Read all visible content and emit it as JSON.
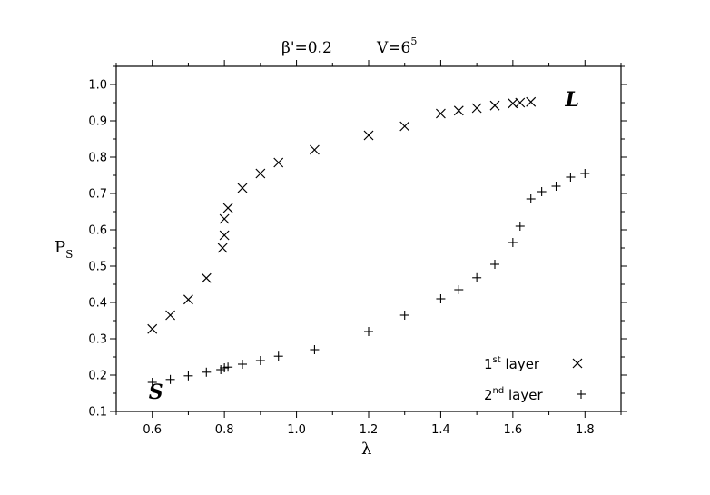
{
  "chart_data": {
    "type": "scatter",
    "title": "β'=0.2",
    "subtitle_base": "V=6",
    "subtitle_exp": "5",
    "xlabel": "λ",
    "ylabel_base": "P",
    "ylabel_sub": "S",
    "xlim": [
      0.5,
      1.9
    ],
    "ylim": [
      0.1,
      1.05
    ],
    "xticks": [
      0.6,
      0.8,
      1.0,
      1.2,
      1.4,
      1.6,
      1.8
    ],
    "xtick_labels": [
      "0.6",
      "0.8",
      "1.0",
      "1.2",
      "1.4",
      "1.6",
      "1.8"
    ],
    "yticks": [
      0.1,
      0.2,
      0.3,
      0.4,
      0.5,
      0.6,
      0.7,
      0.8,
      0.9,
      1.0
    ],
    "ytick_labels": [
      "0.1",
      "0.2",
      "0.3",
      "0.4",
      "0.5",
      "0.6",
      "0.7",
      "0.8",
      "0.9",
      "1.0"
    ],
    "grid": false,
    "legend_position": "bottom-right",
    "series": [
      {
        "name_base": "1",
        "name_sup": "st",
        "name_rest": " layer",
        "marker": "x",
        "x": [
          0.6,
          0.65,
          0.7,
          0.75,
          0.795,
          0.8,
          0.8,
          0.81,
          0.85,
          0.9,
          0.95,
          1.05,
          1.2,
          1.3,
          1.4,
          1.45,
          1.5,
          1.55,
          1.6,
          1.62,
          1.65
        ],
        "y": [
          0.327,
          0.365,
          0.408,
          0.467,
          0.55,
          0.585,
          0.63,
          0.66,
          0.715,
          0.755,
          0.785,
          0.82,
          0.86,
          0.885,
          0.92,
          0.928,
          0.935,
          0.942,
          0.948,
          0.95,
          0.952
        ]
      },
      {
        "name_base": "2",
        "name_sup": "nd",
        "name_rest": " layer",
        "marker": "+",
        "x": [
          0.6,
          0.65,
          0.7,
          0.75,
          0.79,
          0.8,
          0.81,
          0.85,
          0.9,
          0.95,
          1.05,
          1.2,
          1.3,
          1.4,
          1.45,
          1.5,
          1.55,
          1.6,
          1.62,
          1.65,
          1.68,
          1.72,
          1.76,
          1.8
        ],
        "y": [
          0.18,
          0.188,
          0.198,
          0.208,
          0.215,
          0.22,
          0.222,
          0.23,
          0.24,
          0.252,
          0.27,
          0.32,
          0.365,
          0.41,
          0.435,
          0.468,
          0.505,
          0.565,
          0.61,
          0.685,
          0.705,
          0.72,
          0.745,
          0.755
        ]
      }
    ],
    "annotations": [
      {
        "text": "L",
        "x": 1.745,
        "y": 0.94
      },
      {
        "text": "S",
        "x": 0.59,
        "y": 0.135
      }
    ]
  }
}
